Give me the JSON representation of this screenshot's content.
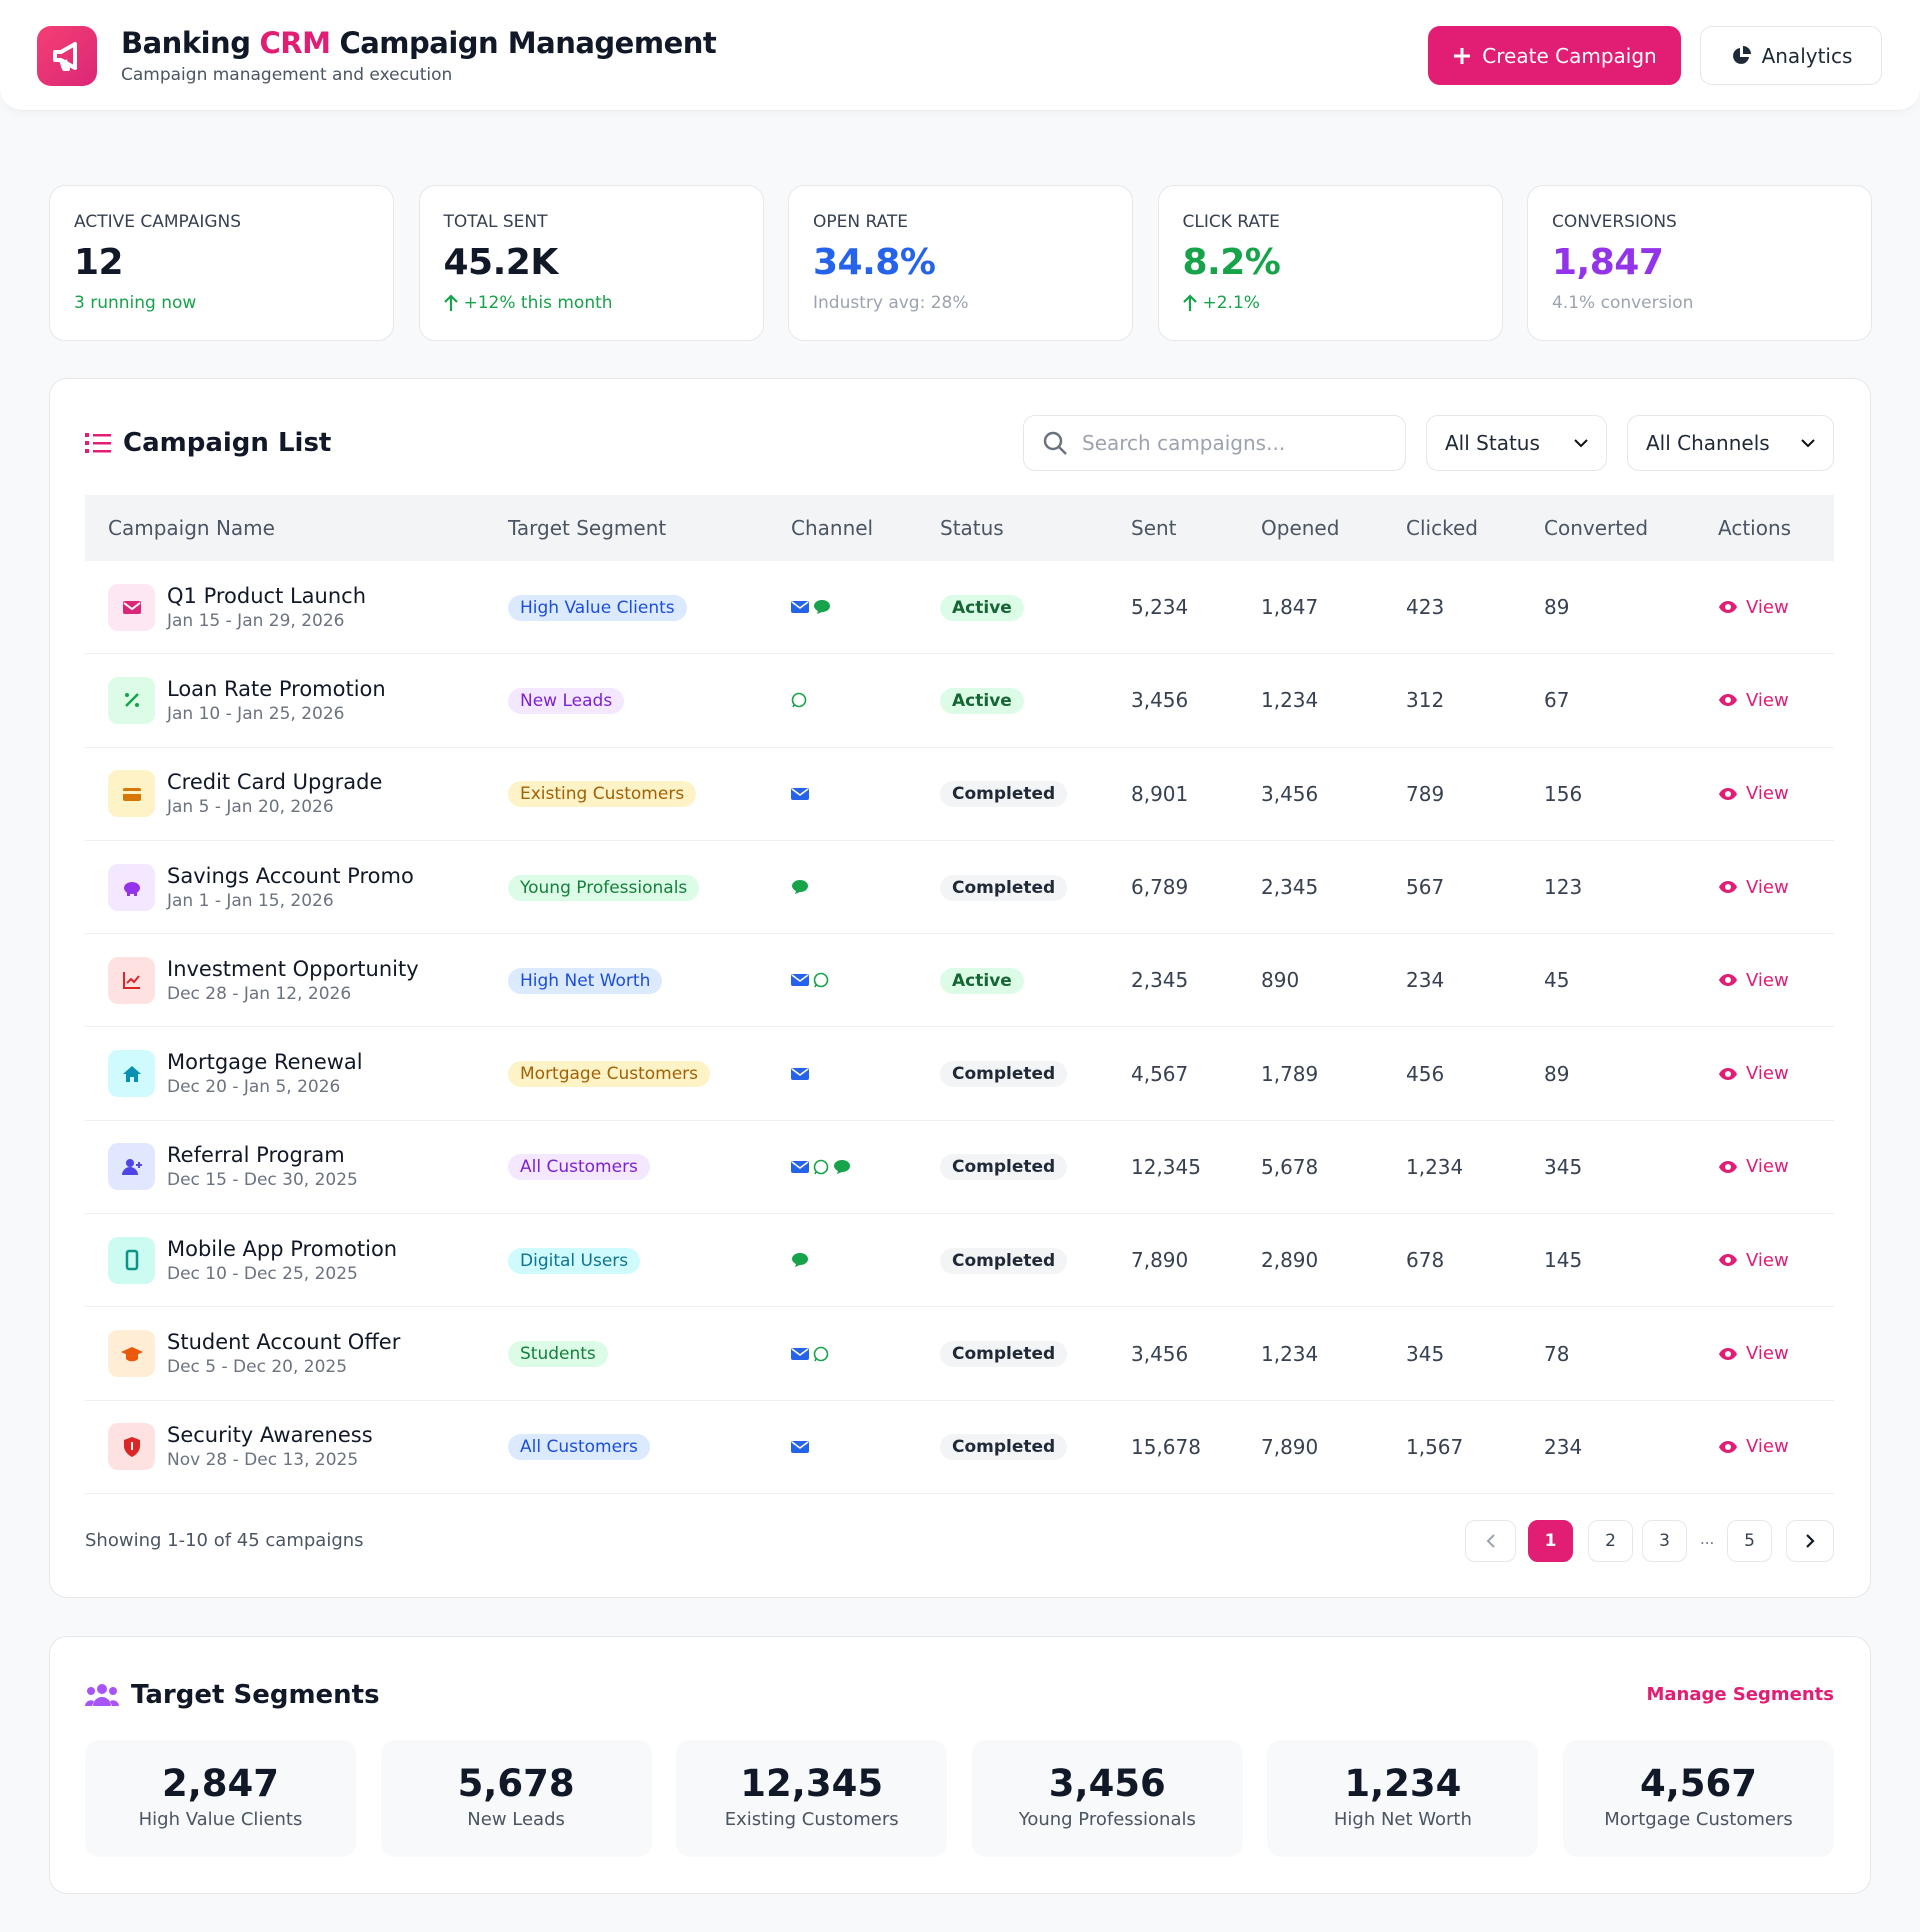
{
  "header": {
    "title_start": "Banking",
    "title_highlight": "CRM",
    "title_end": "Campaign Management",
    "subtitle": "Campaign management and execution",
    "buttons": [
      "Create Campaign",
      "Analytics"
    ]
  },
  "stats": [
    {
      "label": "ACTIVE CAMPAIGNS",
      "value": "12",
      "note": "3 running now"
    },
    {
      "label": "TOTAL SENT",
      "value": "45.2K",
      "note": "+12% this month"
    },
    {
      "label": "OPEN RATE",
      "value": "34.8%",
      "note": "Industry avg: 28%"
    },
    {
      "label": "CLICK RATE",
      "value": "8.2%",
      "note": "+2.1%"
    },
    {
      "label": "CONVERSIONS",
      "value": "1,847",
      "note": "4.1% conversion"
    }
  ],
  "campaign_list": {
    "title": "Campaign List",
    "search_placeholder": "Search campaigns...",
    "filters": [
      "All Status",
      "All Channels"
    ],
    "columns": [
      "Campaign Name",
      "Target Segment",
      "Channel",
      "Status",
      "Sent",
      "Opened",
      "Clicked",
      "Converted",
      "Actions"
    ],
    "action_label": "View",
    "rows": [
      {
        "name": "Q1 Product Launch",
        "dates": "Jan 15 - Jan 29, 2026",
        "segment": "High Value Clients",
        "status": "Active",
        "sent": "5,234",
        "opened": "1,847",
        "clicked": "423",
        "converted": "89"
      },
      {
        "name": "Loan Rate Promotion",
        "dates": "Jan 10 - Jan 25, 2026",
        "segment": "New Leads",
        "status": "Active",
        "sent": "3,456",
        "opened": "1,234",
        "clicked": "312",
        "converted": "67"
      },
      {
        "name": "Credit Card Upgrade",
        "dates": "Jan 5 - Jan 20, 2026",
        "segment": "Existing Customers",
        "status": "Completed",
        "sent": "8,901",
        "opened": "3,456",
        "clicked": "789",
        "converted": "156"
      },
      {
        "name": "Savings Account Promo",
        "dates": "Jan 1 - Jan 15, 2026",
        "segment": "Young Professionals",
        "status": "Completed",
        "sent": "6,789",
        "opened": "2,345",
        "clicked": "567",
        "converted": "123"
      },
      {
        "name": "Investment Opportunity",
        "dates": "Dec 28 - Jan 12, 2026",
        "segment": "High Net Worth",
        "status": "Active",
        "sent": "2,345",
        "opened": "890",
        "clicked": "234",
        "converted": "45"
      },
      {
        "name": "Mortgage Renewal",
        "dates": "Dec 20 - Jan 5, 2026",
        "segment": "Mortgage Customers",
        "status": "Completed",
        "sent": "4,567",
        "opened": "1,789",
        "clicked": "456",
        "converted": "89"
      },
      {
        "name": "Referral Program",
        "dates": "Dec 15 - Dec 30, 2025",
        "segment": "All Customers",
        "status": "Completed",
        "sent": "12,345",
        "opened": "5,678",
        "clicked": "1,234",
        "converted": "345"
      },
      {
        "name": "Mobile App Promotion",
        "dates": "Dec 10 - Dec 25, 2025",
        "segment": "Digital Users",
        "status": "Completed",
        "sent": "7,890",
        "opened": "2,890",
        "clicked": "678",
        "converted": "145"
      },
      {
        "name": "Student Account Offer",
        "dates": "Dec 5 - Dec 20, 2025",
        "segment": "Students",
        "status": "Completed",
        "sent": "3,456",
        "opened": "1,234",
        "clicked": "345",
        "converted": "78"
      },
      {
        "name": "Security Awareness",
        "dates": "Nov 28 - Dec 13, 2025",
        "segment": "All Customers",
        "status": "Completed",
        "sent": "15,678",
        "opened": "7,890",
        "clicked": "1,567",
        "converted": "234"
      }
    ],
    "footer": "Showing 1-10 of 45 campaigns",
    "pages": [
      "1",
      "2",
      "3",
      "...",
      "5"
    ]
  },
  "segments": {
    "title": "Target Segments",
    "link": "Manage Segments",
    "items": [
      {
        "value": "2,847",
        "label": "High Value Clients"
      },
      {
        "value": "5,678",
        "label": "New Leads"
      },
      {
        "value": "12,345",
        "label": "Existing Customers"
      },
      {
        "value": "3,456",
        "label": "Young Professionals"
      },
      {
        "value": "1,234",
        "label": "High Net Worth"
      },
      {
        "value": "4,567",
        "label": "Mortgage Customers"
      }
    ]
  }
}
